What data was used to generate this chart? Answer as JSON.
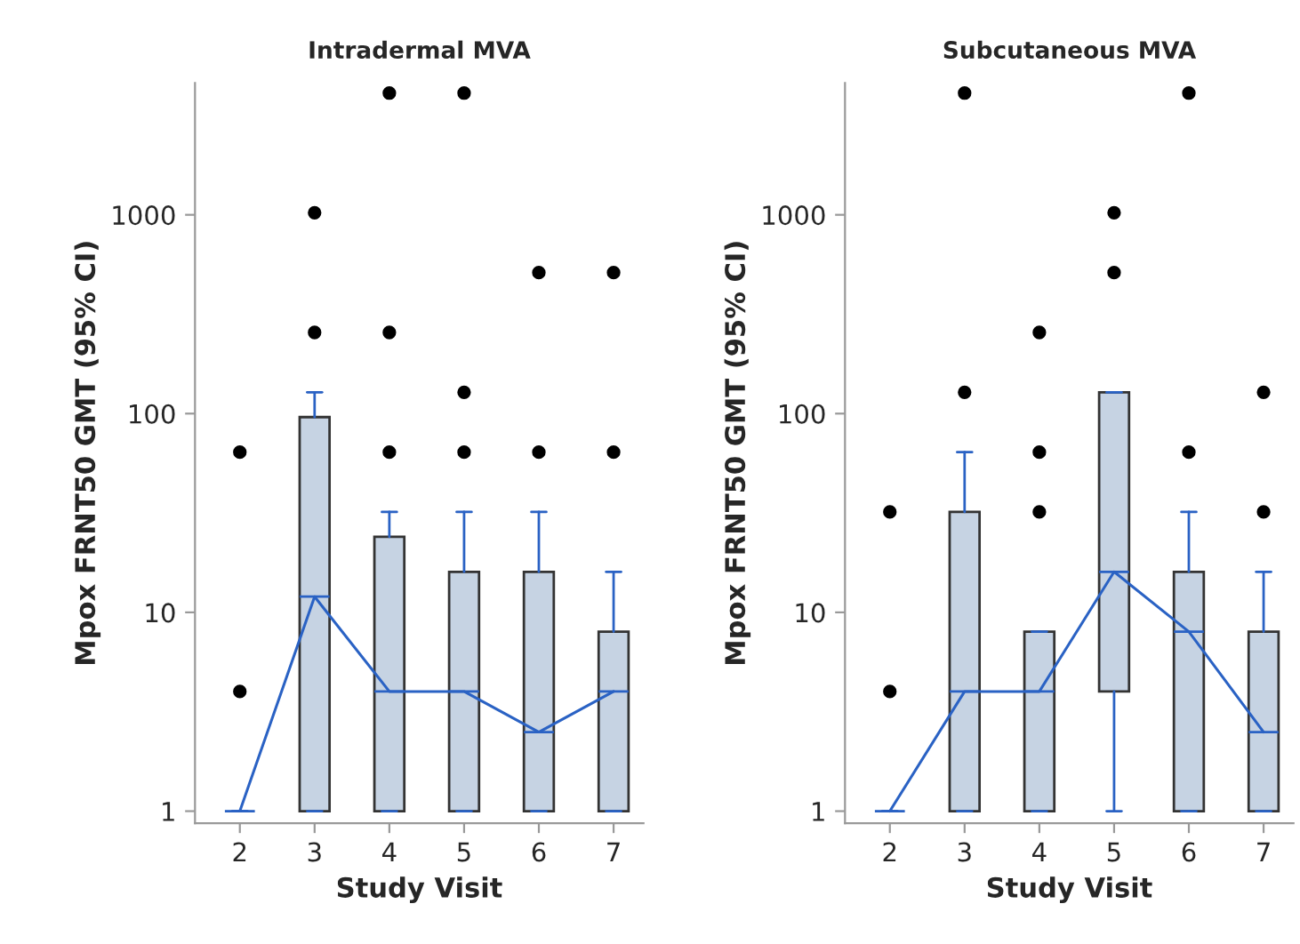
{
  "chart_data": [
    {
      "type": "box",
      "title": "Intradermal MVA",
      "xlabel": "Study Visit",
      "ylabel": "Mpox FRNT50 GMT (95% CI)",
      "categories": [
        "2",
        "3",
        "4",
        "5",
        "6",
        "7"
      ],
      "log": true,
      "ylim": [
        0.87,
        4600
      ],
      "yticks": [
        1,
        10,
        100,
        1000
      ],
      "grid": false,
      "legend": false,
      "series": [
        {
          "type": "box",
          "color": "#c6d3e3",
          "boxes": [
            {
              "low": 1,
              "q1": 1,
              "median": 1,
              "q3": 1,
              "high": 1,
              "outliers": [
                4,
                64
              ]
            },
            {
              "low": 1,
              "q1": 1,
              "median": 12,
              "q3": 96,
              "high": 128,
              "outliers": [
                256,
                1024
              ]
            },
            {
              "low": 1,
              "q1": 1,
              "median": 4,
              "q3": 24,
              "high": 32,
              "outliers": [
                64,
                256,
                4096
              ]
            },
            {
              "low": 1,
              "q1": 1,
              "median": 4,
              "q3": 16,
              "high": 32,
              "outliers": [
                64,
                128,
                4096
              ]
            },
            {
              "low": 1,
              "q1": 1,
              "median": 2.5,
              "q3": 16,
              "high": 32,
              "outliers": [
                64,
                512
              ]
            },
            {
              "low": 1,
              "q1": 1,
              "median": 4,
              "q3": 8,
              "high": 16,
              "outliers": [
                64,
                512
              ]
            }
          ]
        },
        {
          "type": "line",
          "color": "#2a62c4",
          "values": [
            1,
            12,
            4,
            4,
            2.5,
            4
          ]
        }
      ]
    },
    {
      "type": "box",
      "title": "Subcutaneous MVA",
      "xlabel": "Study Visit",
      "ylabel": "Mpox FRNT50 GMT (95% CI)",
      "categories": [
        "2",
        "3",
        "4",
        "5",
        "6",
        "7"
      ],
      "log": true,
      "ylim": [
        0.87,
        4600
      ],
      "yticks": [
        1,
        10,
        100,
        1000
      ],
      "grid": false,
      "legend": false,
      "series": [
        {
          "type": "box",
          "color": "#c6d3e3",
          "boxes": [
            {
              "low": 1,
              "q1": 1,
              "median": 1,
              "q3": 1,
              "high": 1,
              "outliers": [
                4,
                32
              ]
            },
            {
              "low": 1,
              "q1": 1,
              "median": 4,
              "q3": 32,
              "high": 64,
              "outliers": [
                128,
                4096
              ]
            },
            {
              "low": 1,
              "q1": 1,
              "median": 4,
              "q3": 8,
              "high": 8,
              "outliers": [
                32,
                64,
                256
              ]
            },
            {
              "low": 1,
              "q1": 4,
              "median": 16,
              "q3": 128,
              "high": 128,
              "outliers": [
                512,
                1024
              ]
            },
            {
              "low": 1,
              "q1": 1,
              "median": 8,
              "q3": 16,
              "high": 32,
              "outliers": [
                64,
                4096
              ]
            },
            {
              "low": 1,
              "q1": 1,
              "median": 2.5,
              "q3": 8,
              "high": 16,
              "outliers": [
                32,
                128
              ]
            }
          ]
        },
        {
          "type": "line",
          "color": "#2a62c4",
          "values": [
            1,
            4,
            4,
            16,
            8,
            2.5
          ]
        }
      ]
    }
  ]
}
